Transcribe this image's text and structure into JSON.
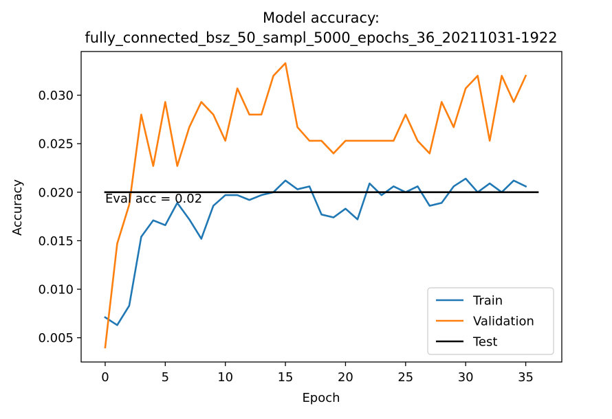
{
  "chart_data": {
    "type": "line",
    "title_line1": "Model accuracy:",
    "title_line2": "fully_connected_bsz_50_sampl_5000_epochs_36_20211031-1922",
    "xlabel": "Epoch",
    "ylabel": "Accuracy",
    "xlim": [
      -2,
      38
    ],
    "ylim": [
      0.0025,
      0.0345
    ],
    "xticks": [
      0,
      5,
      10,
      15,
      20,
      25,
      30,
      35
    ],
    "yticks": [
      0.005,
      0.01,
      0.015,
      0.02,
      0.025,
      0.03
    ],
    "xtick_labels": [
      "0",
      "5",
      "10",
      "15",
      "20",
      "25",
      "30",
      "35"
    ],
    "ytick_labels": [
      "0.005",
      "0.010",
      "0.015",
      "0.020",
      "0.025",
      "0.030"
    ],
    "grid": false,
    "legend_position": "lower right",
    "series": [
      {
        "name": "Train",
        "color": "#1f77b4",
        "x": [
          0,
          1,
          2,
          3,
          4,
          5,
          6,
          7,
          8,
          9,
          10,
          11,
          12,
          13,
          14,
          15,
          16,
          17,
          18,
          19,
          20,
          21,
          22,
          23,
          24,
          25,
          26,
          27,
          28,
          29,
          30,
          31,
          32,
          33,
          34,
          35
        ],
        "y": [
          0.0071,
          0.0063,
          0.0083,
          0.0154,
          0.0171,
          0.0166,
          0.0189,
          0.0172,
          0.0152,
          0.0186,
          0.0197,
          0.0197,
          0.0192,
          0.0197,
          0.02,
          0.0212,
          0.0203,
          0.0206,
          0.0177,
          0.0174,
          0.0183,
          0.0172,
          0.0209,
          0.0197,
          0.0206,
          0.02,
          0.0206,
          0.0186,
          0.0189,
          0.0206,
          0.0214,
          0.02,
          0.0209,
          0.02,
          0.0212,
          0.0206
        ]
      },
      {
        "name": "Validation",
        "color": "#ff7f0e",
        "x": [
          0,
          1,
          2,
          3,
          4,
          5,
          6,
          7,
          8,
          9,
          10,
          11,
          12,
          13,
          14,
          15,
          16,
          17,
          18,
          19,
          20,
          21,
          22,
          23,
          24,
          25,
          26,
          27,
          28,
          29,
          30,
          31,
          32,
          33,
          34,
          35
        ],
        "y": [
          0.004,
          0.0147,
          0.0187,
          0.028,
          0.0227,
          0.0293,
          0.0227,
          0.0267,
          0.0293,
          0.028,
          0.0253,
          0.0307,
          0.028,
          0.028,
          0.032,
          0.0333,
          0.0267,
          0.0253,
          0.0253,
          0.024,
          0.0253,
          0.0253,
          0.0253,
          0.0253,
          0.0253,
          0.028,
          0.0253,
          0.024,
          0.0293,
          0.0267,
          0.0307,
          0.032,
          0.0253,
          0.032,
          0.0293,
          0.032
        ]
      },
      {
        "name": "Test",
        "color": "#000000",
        "x": [
          0,
          36
        ],
        "y": [
          0.02,
          0.02
        ]
      }
    ],
    "annotation": {
      "text": "Eval acc = 0.02",
      "x": 0,
      "y": 0.0195
    }
  }
}
